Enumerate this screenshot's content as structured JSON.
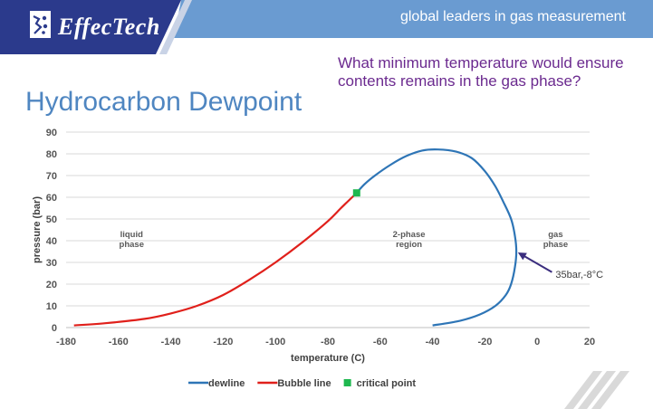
{
  "header": {
    "brand": "EffecTech",
    "tagline": "global leaders in gas measurement",
    "colors": {
      "banner": "#6a9bd1",
      "logo_box": "#2b3a8c"
    }
  },
  "question": "What minimum temperature would ensure contents remains in the gas phase?",
  "title": "Hydrocarbon Dewpoint",
  "chart_data": {
    "type": "line",
    "xlabel": "temperature (C)",
    "ylabel": "pressure (bar)",
    "xlim": [
      -180,
      20
    ],
    "ylim": [
      0,
      90
    ],
    "xticks": [
      -180,
      -160,
      -140,
      -120,
      -100,
      -80,
      -60,
      -40,
      -20,
      0,
      20
    ],
    "yticks": [
      0,
      10,
      20,
      30,
      40,
      50,
      60,
      70,
      80,
      90
    ],
    "grid": true,
    "legend": "bottom",
    "series": [
      {
        "name": "dewline",
        "color": "#2e75b6",
        "points": [
          [
            -40,
            1
          ],
          [
            -30,
            3
          ],
          [
            -22,
            6
          ],
          [
            -16,
            10
          ],
          [
            -12,
            15
          ],
          [
            -10,
            20
          ],
          [
            -8.5,
            28
          ],
          [
            -8,
            35
          ],
          [
            -8.5,
            42
          ],
          [
            -10,
            50
          ],
          [
            -13,
            58
          ],
          [
            -16,
            65
          ],
          [
            -20,
            72
          ],
          [
            -25,
            78
          ],
          [
            -31,
            81
          ],
          [
            -38,
            82
          ],
          [
            -44,
            81.5
          ],
          [
            -50,
            79
          ],
          [
            -56,
            75
          ],
          [
            -62,
            70
          ],
          [
            -66,
            66
          ],
          [
            -69,
            62
          ]
        ]
      },
      {
        "name": "Bubble line",
        "color": "#e0201b",
        "points": [
          [
            -177,
            1
          ],
          [
            -165,
            2
          ],
          [
            -150,
            4
          ],
          [
            -140,
            6.5
          ],
          [
            -130,
            10
          ],
          [
            -120,
            15
          ],
          [
            -110,
            22
          ],
          [
            -100,
            30
          ],
          [
            -90,
            39
          ],
          [
            -80,
            49
          ],
          [
            -75,
            55
          ],
          [
            -69,
            62
          ]
        ]
      },
      {
        "name": "critical point",
        "color": "#1fb84f",
        "marker": "square",
        "points": [
          [
            -69,
            62
          ]
        ]
      }
    ],
    "annotations": [
      {
        "text": [
          "liquid",
          "phase"
        ],
        "x": -155,
        "y": 40
      },
      {
        "text": [
          "2-phase",
          "region"
        ],
        "x": -49,
        "y": 40
      },
      {
        "text": [
          "gas",
          "phase"
        ],
        "x": 7,
        "y": 40
      },
      {
        "text": [
          "35bar,-8°C"
        ],
        "x": 7,
        "y": 23,
        "arrow_to": [
          -8,
          35
        ]
      }
    ]
  }
}
